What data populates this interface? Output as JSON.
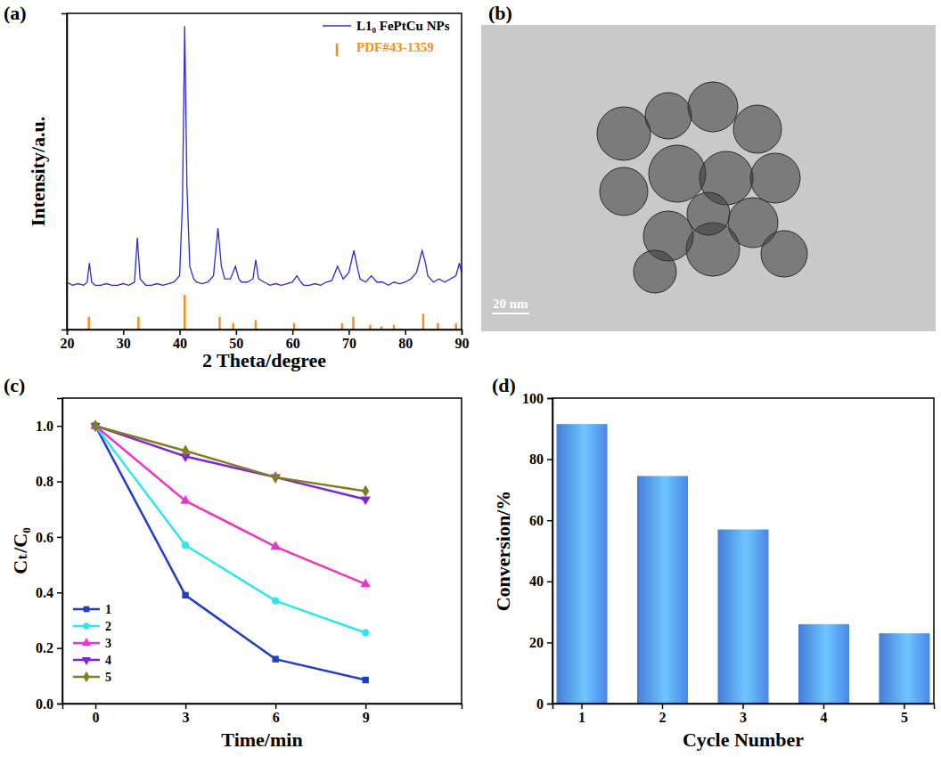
{
  "chart_data": [
    {
      "type": "line",
      "panel_label": "(a)",
      "x_label": "2 Theta/degree",
      "y_label": "Intensity/a.u.",
      "xlim": [
        20,
        90
      ],
      "xticks": [
        20,
        30,
        40,
        50,
        60,
        70,
        80,
        90
      ],
      "ylim": [
        0,
        100
      ],
      "tick_labels": "x",
      "legend": "top-right",
      "series": [
        {
          "name": "L1₀ FePtCu NPs",
          "type": "line",
          "color": "#2b2bd6",
          "x": [
            20,
            21,
            22,
            23,
            23.6,
            24,
            24.4,
            25,
            26,
            27,
            28,
            29,
            30,
            31,
            32,
            32.5,
            33,
            34,
            35,
            36,
            37,
            38,
            39,
            40,
            40.5,
            40.9,
            41.3,
            41.8,
            42.5,
            43,
            44,
            45,
            46,
            46.8,
            47.4,
            48,
            49,
            49.9,
            50.5,
            51,
            52,
            53,
            53.5,
            54,
            55,
            56,
            57,
            58,
            59,
            60,
            60.8,
            61.5,
            62,
            63,
            64,
            65,
            66,
            67,
            68,
            68.5,
            69,
            70,
            70.9,
            71.6,
            72,
            73,
            74,
            75,
            76,
            77,
            78,
            79,
            80,
            81,
            82,
            83,
            83.6,
            84,
            85,
            86,
            87,
            88,
            89,
            89.6,
            90
          ],
          "values": [
            15,
            14,
            14.5,
            14,
            15,
            21,
            15,
            14,
            14,
            14.5,
            14,
            14,
            14.5,
            14,
            15,
            29,
            16,
            14,
            14,
            14.5,
            14,
            14.5,
            15,
            17,
            40,
            96,
            45,
            20,
            16,
            15,
            14.5,
            15,
            17,
            32,
            20,
            16,
            16,
            20,
            16,
            15,
            15,
            16,
            22,
            16,
            15,
            14,
            14.5,
            14,
            14.5,
            15,
            17,
            15,
            14,
            14,
            14.5,
            14,
            15,
            15.5,
            20,
            18,
            16,
            18,
            25,
            19,
            16,
            15,
            17,
            15,
            15,
            14,
            15,
            14.5,
            15,
            16,
            18,
            25,
            21,
            17,
            15,
            16,
            15,
            16,
            17,
            21,
            18
          ]
        },
        {
          "name": "PDF#43-1359",
          "type": "stick",
          "color": "#f5901e",
          "x": [
            23.9,
            32.7,
            40.9,
            47.1,
            49.5,
            53.5,
            60.3,
            68.8,
            70.8,
            73.8,
            75.8,
            78,
            83.2,
            85.8,
            89
          ],
          "values": [
            4,
            4,
            11,
            4,
            2,
            3,
            2,
            2,
            4,
            1.5,
            1,
            1.5,
            5,
            2,
            2
          ]
        }
      ]
    },
    {
      "type": "image",
      "panel_label": "(b)",
      "annotations": [
        "20 nm"
      ]
    },
    {
      "type": "line",
      "panel_label": "(c)",
      "x_label": "Time/min",
      "y_label": "Cₜ/C₀",
      "x": [
        0,
        3,
        6,
        9
      ],
      "xlim": [
        -1.1,
        12.2
      ],
      "xticks": [
        0,
        3,
        6,
        9
      ],
      "ylim": [
        0,
        1.1
      ],
      "yticks": [
        {
          "value": 0,
          "label": "0.0"
        },
        0.2,
        0.4,
        0.6,
        0.8,
        {
          "value": 1,
          "label": "1.0"
        }
      ],
      "legend": "bottom-left",
      "series": [
        {
          "name": "1",
          "color": "#1f3fc4",
          "marker": "square",
          "values": [
            1,
            0.39,
            0.16,
            0.085
          ]
        },
        {
          "name": "2",
          "color": "#2ee6ee",
          "marker": "circle",
          "values": [
            1,
            0.57,
            0.37,
            0.255
          ]
        },
        {
          "name": "3",
          "color": "#ee33cc",
          "marker": "triangle-up",
          "values": [
            1,
            0.73,
            0.565,
            0.43
          ]
        },
        {
          "name": "4",
          "color": "#8122d8",
          "marker": "triangle-down",
          "values": [
            1,
            0.89,
            0.815,
            0.735
          ]
        },
        {
          "name": "5",
          "color": "#7f7f1f",
          "marker": "diamond",
          "values": [
            1,
            0.91,
            0.815,
            0.765
          ]
        }
      ]
    },
    {
      "type": "bar",
      "panel_label": "(d)",
      "x_label": "Cycle Number",
      "y_label": "Conversion/%",
      "categories": [
        "1",
        "2",
        "3",
        "4",
        "5"
      ],
      "values": [
        91.5,
        74.5,
        57,
        26,
        23
      ],
      "color": "#4a86e8",
      "ylim": [
        0,
        100
      ],
      "yticks": [
        0,
        20,
        40,
        60,
        80,
        100
      ]
    }
  ]
}
